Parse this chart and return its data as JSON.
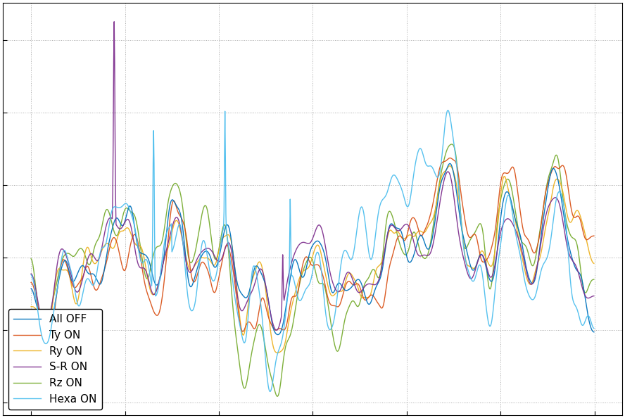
{
  "title": "",
  "xlabel": "",
  "ylabel": "",
  "background_color": "#ffffff",
  "grid_color": "#aaaaaa",
  "figsize": [
    8.88,
    5.94
  ],
  "dpi": 100,
  "series": [
    {
      "label": "All OFF",
      "color": "#0072bd",
      "zorder": 4
    },
    {
      "label": "Ty ON",
      "color": "#d95319",
      "zorder": 3
    },
    {
      "label": "Ry ON",
      "color": "#edb120",
      "zorder": 2
    },
    {
      "label": "S-R ON",
      "color": "#7e2f8e",
      "zorder": 5
    },
    {
      "label": "Rz ON",
      "color": "#77ac30",
      "zorder": 1
    },
    {
      "label": "Hexa ON",
      "color": "#4dbeee",
      "zorder": 6
    }
  ],
  "legend": {
    "loc": "lower left",
    "fontsize": 11,
    "framealpha": 1.0,
    "edgecolor": "#000000"
  },
  "n_points": 1200,
  "seed": 42,
  "linewidth": 1.0
}
